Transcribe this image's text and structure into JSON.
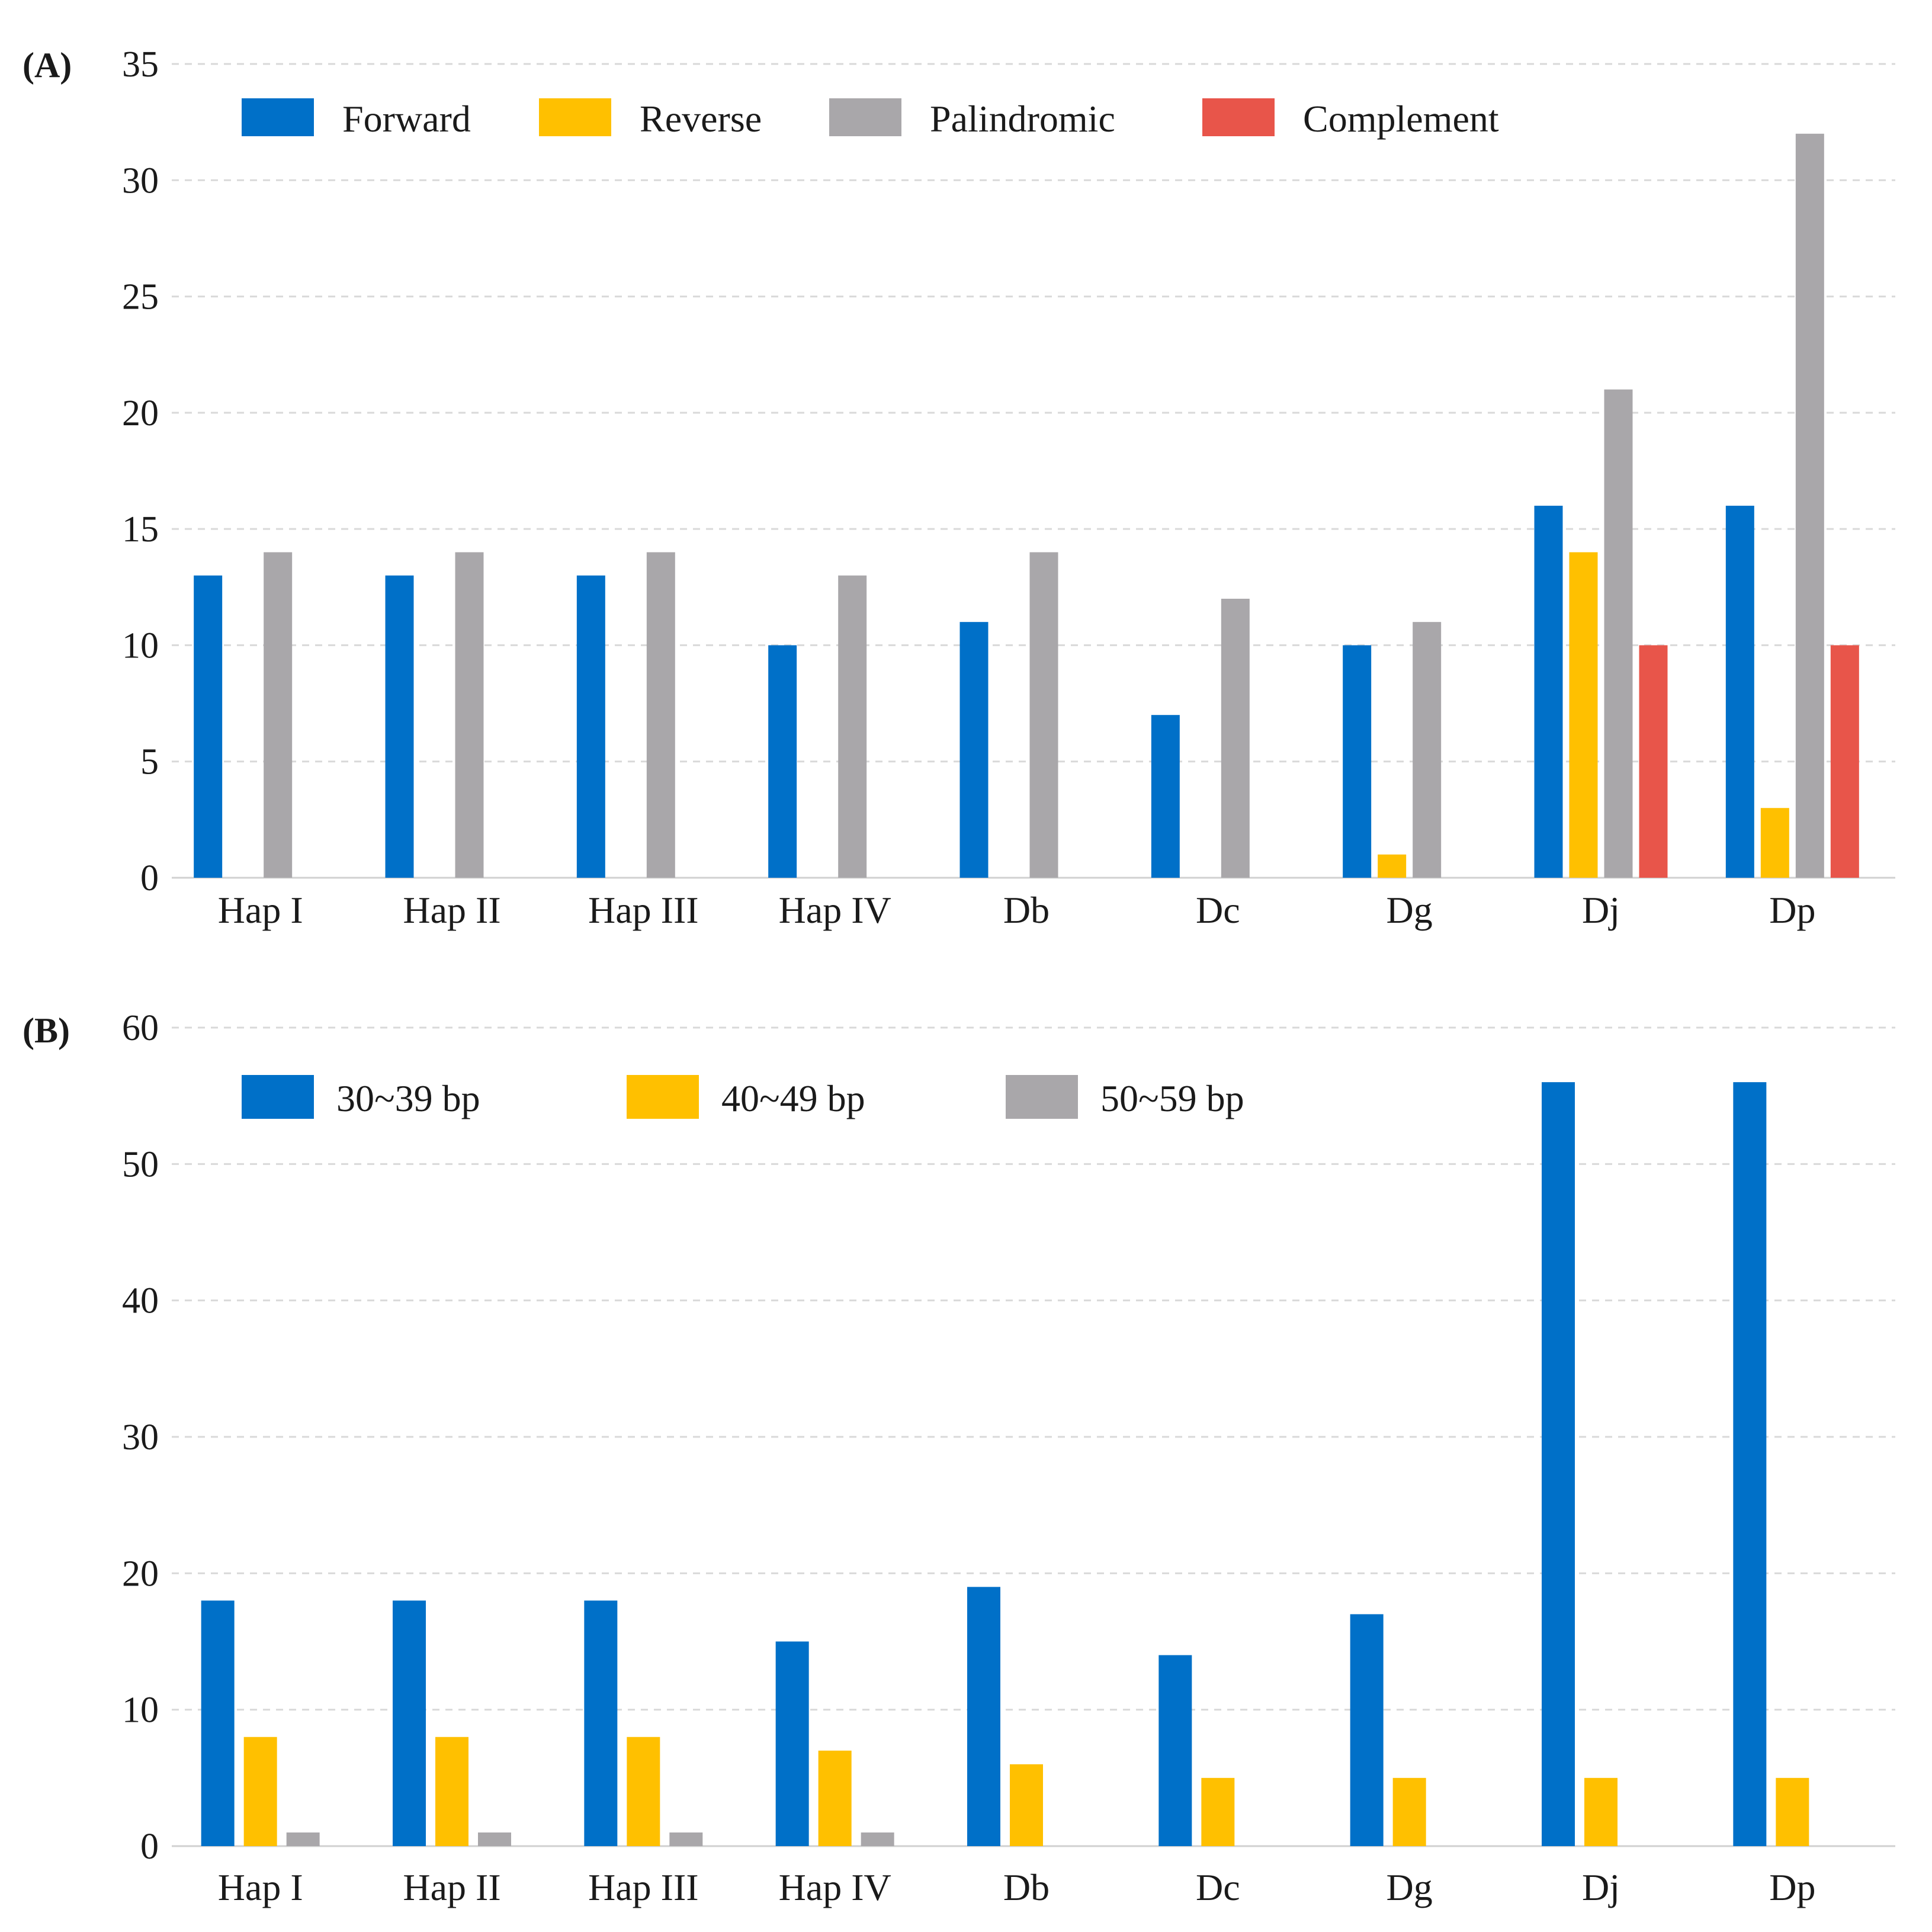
{
  "chart_data": [
    {
      "panel_label": "(A)",
      "type": "bar",
      "categories": [
        "Hap I",
        "Hap II",
        "Hap III",
        "Hap IV",
        "Db",
        "Dc",
        "Dg",
        "Dj",
        "Dp"
      ],
      "series": [
        {
          "name": "Forward",
          "color": "#0070C8",
          "values": [
            13,
            13,
            13,
            10,
            11,
            7,
            10,
            16,
            16
          ]
        },
        {
          "name": "Reverse",
          "color": "#FFC000",
          "values": [
            0,
            0,
            0,
            0,
            0,
            0,
            1,
            14,
            3
          ]
        },
        {
          "name": "Palindromic",
          "color": "#A9A7AA",
          "values": [
            14,
            14,
            14,
            13,
            14,
            12,
            11,
            21,
            32
          ]
        },
        {
          "name": "Complement",
          "color": "#E8554A",
          "values": [
            0,
            0,
            0,
            0,
            0,
            0,
            0,
            10,
            10
          ]
        }
      ],
      "ylim": [
        0,
        35
      ],
      "yticks": [
        "0",
        "5",
        "10",
        "15",
        "20",
        "25",
        "30",
        "35"
      ],
      "ytick_values": [
        0,
        5,
        10,
        15,
        20,
        25,
        30,
        35
      ],
      "grid": true,
      "legend_position": "top-left"
    },
    {
      "panel_label": "(B)",
      "type": "bar",
      "categories": [
        "Hap I",
        "Hap II",
        "Hap III",
        "Hap IV",
        "Db",
        "Dc",
        "Dg",
        "Dj",
        "Dp"
      ],
      "series": [
        {
          "name": "30~39 bp",
          "color": "#0070C8",
          "values": [
            18,
            18,
            18,
            15,
            19,
            14,
            17,
            56,
            56
          ]
        },
        {
          "name": "40~49 bp",
          "color": "#FFC000",
          "values": [
            8,
            8,
            8,
            7,
            6,
            5,
            5,
            5,
            5
          ]
        },
        {
          "name": "50~59 bp",
          "color": "#A9A7AA",
          "values": [
            1,
            1,
            1,
            1,
            0,
            0,
            0,
            0,
            0
          ]
        }
      ],
      "ylim": [
        0,
        60
      ],
      "yticks": [
        "0",
        "10",
        "20",
        "30",
        "40",
        "50",
        "60"
      ],
      "ytick_values": [
        0,
        10,
        20,
        30,
        40,
        50,
        60
      ],
      "grid": true,
      "legend_position": "top-left"
    }
  ]
}
